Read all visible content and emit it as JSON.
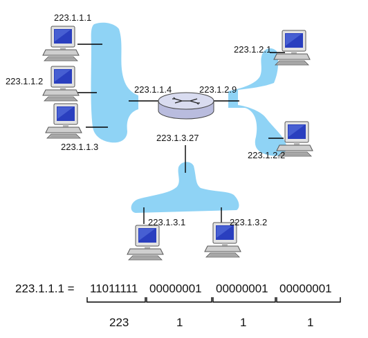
{
  "colors": {
    "subnet": "#8fd3f5",
    "link": "#000000",
    "router_top": "#d9dcf0",
    "router_body": "#b9bcde",
    "screen": "#2a3fbf"
  },
  "subnet_1": {
    "hosts": [
      {
        "address": "223.1.1.1"
      },
      {
        "address": "223.1.1.2"
      },
      {
        "address": "223.1.1.3"
      }
    ],
    "router_interface": "223.1.1.4"
  },
  "subnet_2": {
    "hosts": [
      {
        "address": "223.1.2.1"
      },
      {
        "address": "223.1.2.2"
      }
    ],
    "router_interface": "223.1.2.9"
  },
  "subnet_3": {
    "hosts": [
      {
        "address": "223.1.3.1"
      },
      {
        "address": "223.1.3.2"
      }
    ],
    "router_interface": "223.1.3.27"
  },
  "binary_example": {
    "lhs": "223.1.1.1 =",
    "octets": [
      {
        "bits": "11011111",
        "decimal": "223"
      },
      {
        "bits": "00000001",
        "decimal": "1"
      },
      {
        "bits": "00000001",
        "decimal": "1"
      },
      {
        "bits": "00000001",
        "decimal": "1"
      }
    ]
  }
}
